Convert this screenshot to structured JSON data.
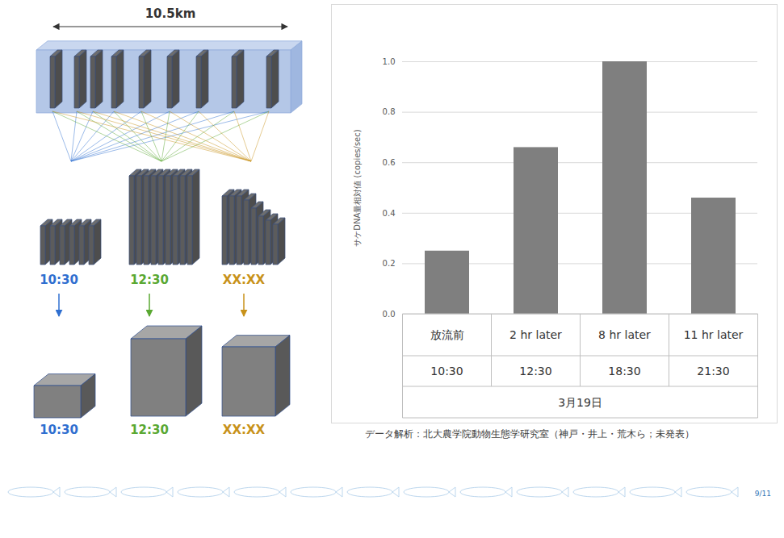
{
  "diagram": {
    "distance_label": "10.5km",
    "samples": [
      {
        "time": "10:30",
        "color": "#2f6fd0"
      },
      {
        "time": "12:30",
        "color": "#5aa832"
      },
      {
        "time": "XX:XX",
        "color": "#c8921a"
      }
    ]
  },
  "chart_data": {
    "type": "bar",
    "y_label": "サケDNA量相対値 (copies/sec)",
    "categories": [
      "放流前",
      "2 hr later",
      "8 hr later",
      "11 hr later"
    ],
    "x_sublabels": [
      "10:30",
      "12:30",
      "18:30",
      "21:30"
    ],
    "x_group_label": "3月19日",
    "values": [
      0.25,
      0.66,
      1.0,
      0.46
    ],
    "color": "#7f7f7f",
    "ylim": [
      0,
      1.0
    ],
    "yticks": [
      {
        "value": 0,
        "label": "0.0"
      },
      0.2,
      0.4,
      0.6,
      0.8,
      {
        "value": 1.0,
        "label": "1.0"
      }
    ],
    "grid": true
  },
  "caption": "データ解析：北大農学院動物生態学研究室（神戸・井上・荒木ら；未発表）",
  "page_number": "9/11"
}
